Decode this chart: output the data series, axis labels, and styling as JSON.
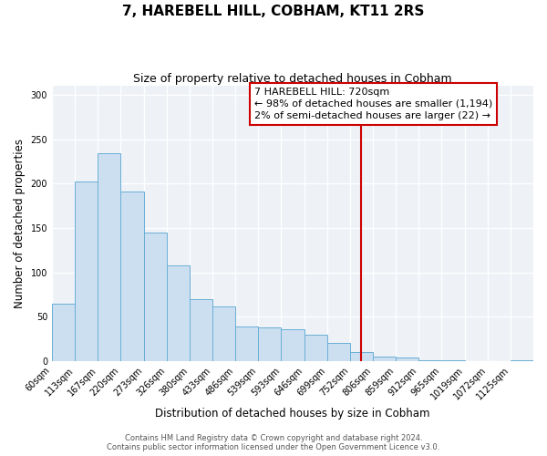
{
  "title": "7, HAREBELL HILL, COBHAM, KT11 2RS",
  "subtitle": "Size of property relative to detached houses in Cobham",
  "xlabel": "Distribution of detached houses by size in Cobham",
  "ylabel": "Number of detached properties",
  "bin_labels": [
    "60sqm",
    "113sqm",
    "167sqm",
    "220sqm",
    "273sqm",
    "326sqm",
    "380sqm",
    "433sqm",
    "486sqm",
    "539sqm",
    "593sqm",
    "646sqm",
    "699sqm",
    "752sqm",
    "806sqm",
    "859sqm",
    "912sqm",
    "965sqm",
    "1019sqm",
    "1072sqm",
    "1125sqm"
  ],
  "bar_heights": [
    65,
    202,
    234,
    191,
    145,
    108,
    70,
    62,
    39,
    38,
    36,
    30,
    20,
    10,
    5,
    4,
    1,
    1,
    0,
    0,
    1
  ],
  "bar_color": "#ccdff0",
  "bar_edge_color": "#6aafd6",
  "reference_line_index": 13.5,
  "reference_line_color": "#cc0000",
  "annotation_line1": "7 HAREBELL HILL: 720sqm",
  "annotation_line2": "← 98% of detached houses are smaller (1,194)",
  "annotation_line3": "2% of semi-detached houses are larger (22) →",
  "ylim_max": 310,
  "yticks": [
    0,
    50,
    100,
    150,
    200,
    250,
    300
  ],
  "footer_line1": "Contains HM Land Registry data © Crown copyright and database right 2024.",
  "footer_line2": "Contains public sector information licensed under the Open Government Licence v3.0.",
  "title_fontsize": 11,
  "subtitle_fontsize": 9,
  "axis_label_fontsize": 8.5,
  "tick_fontsize": 7,
  "annotation_fontsize": 8,
  "footer_fontsize": 6,
  "bg_color": "#eef2f7",
  "grid_color": "#ffffff",
  "figsize": [
    6.0,
    5.0
  ],
  "dpi": 100
}
